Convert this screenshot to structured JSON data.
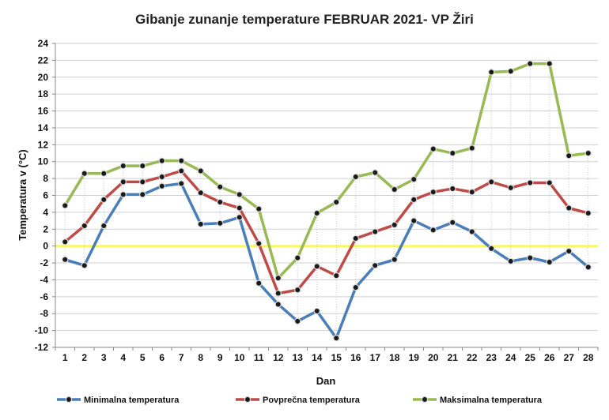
{
  "chart_data": {
    "type": "line",
    "title": "Gibanje zunanje temperature FEBRUAR 2021- VP Žiri",
    "xlabel": "Dan",
    "ylabel": "Temperatura v (°C)",
    "ylim": [
      -12,
      24
    ],
    "yticks": [
      -12,
      -10,
      -8,
      -6,
      -4,
      -2,
      0,
      2,
      4,
      6,
      8,
      10,
      12,
      14,
      16,
      18,
      20,
      22,
      24
    ],
    "x": [
      1,
      2,
      3,
      4,
      5,
      6,
      7,
      8,
      9,
      10,
      11,
      12,
      13,
      14,
      15,
      16,
      17,
      18,
      19,
      20,
      21,
      22,
      23,
      24,
      25,
      26,
      27,
      28
    ],
    "grid": true,
    "legend": "bottom",
    "zero_line_color": "#ffff00",
    "series": [
      {
        "name": "Minimalna temperatura",
        "color": "#4a7ebb",
        "values": [
          -1.6,
          -2.3,
          2.4,
          6.1,
          6.1,
          7.1,
          7.4,
          2.6,
          2.7,
          3.4,
          -4.4,
          -6.9,
          -8.9,
          -7.7,
          -10.9,
          -4.9,
          -2.3,
          -1.6,
          3.0,
          1.9,
          2.8,
          1.7,
          -0.3,
          -1.8,
          -1.4,
          -1.9,
          -0.6,
          -2.5
        ]
      },
      {
        "name": "Povprečna temperatura",
        "color": "#be4b48",
        "values": [
          0.5,
          2.4,
          5.5,
          7.6,
          7.6,
          8.2,
          8.9,
          6.3,
          5.2,
          4.5,
          0.3,
          -5.6,
          -5.2,
          -2.4,
          -3.5,
          0.9,
          1.7,
          2.5,
          5.5,
          6.4,
          6.8,
          6.4,
          7.6,
          6.9,
          7.5,
          7.5,
          4.5,
          3.9
        ]
      },
      {
        "name": "Maksimalna temperatura",
        "color": "#98b954",
        "values": [
          4.8,
          8.6,
          8.6,
          9.5,
          9.5,
          10.1,
          10.1,
          8.9,
          7.0,
          6.1,
          4.4,
          -3.8,
          -1.4,
          3.9,
          5.2,
          8.2,
          8.7,
          6.7,
          7.9,
          11.5,
          11.0,
          11.6,
          20.6,
          20.7,
          21.6,
          21.6,
          10.7,
          11.0
        ]
      }
    ]
  }
}
